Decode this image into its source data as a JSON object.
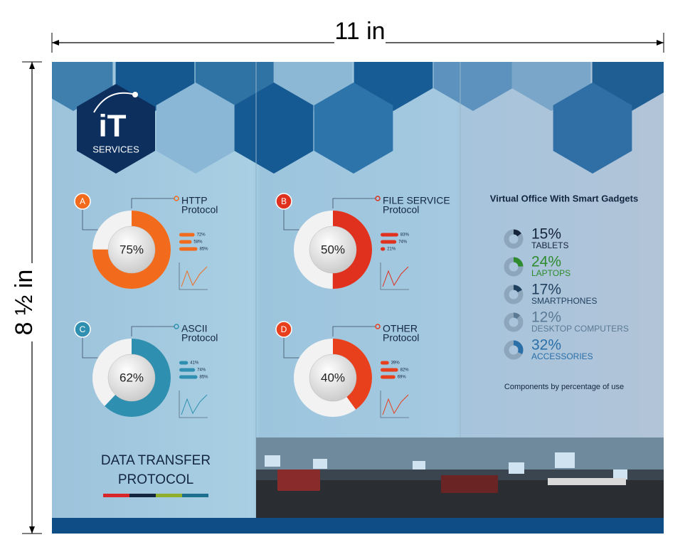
{
  "dimensions": {
    "width": "11 in",
    "height": "8 ½ in"
  },
  "logo": {
    "mark": "iT",
    "text": "SERVICES"
  },
  "panels": [
    {
      "letter": "A",
      "title": [
        "HTTP",
        "Protocol"
      ],
      "color": "#f26a1b",
      "percent": {
        "value": 75,
        "label": "75%"
      },
      "bars": [
        {
          "value": 72,
          "label": "72%"
        },
        {
          "value": 58,
          "label": "58%"
        },
        {
          "value": 85,
          "label": "85%"
        }
      ]
    },
    {
      "letter": "B",
      "title": [
        "FILE SERVICE",
        "Protocol"
      ],
      "color": "#e0301e",
      "percent": {
        "value": 50,
        "label": "50%"
      },
      "bars": [
        {
          "value": 83,
          "label": "83%"
        },
        {
          "value": 74,
          "label": "74%"
        },
        {
          "value": 21,
          "label": "21%"
        }
      ]
    },
    {
      "letter": "C",
      "title": [
        "ASCII",
        "Protocol"
      ],
      "color": "#2e8fb0",
      "percent": {
        "value": 62,
        "label": "62%"
      },
      "bars": [
        {
          "value": 41,
          "label": "41%"
        },
        {
          "value": 74,
          "label": "74%"
        },
        {
          "value": 85,
          "label": "85%"
        }
      ]
    },
    {
      "letter": "D",
      "title": [
        "OTHER",
        "Protocol"
      ],
      "color": "#e8401c",
      "percent": {
        "value": 40,
        "label": "40%"
      },
      "bars": [
        {
          "value": 39,
          "label": "39%"
        },
        {
          "value": 82,
          "label": "82%"
        },
        {
          "value": 69,
          "label": "69%"
        }
      ]
    }
  ],
  "gadgets": {
    "title": "Virtual Office With Smart Gadgets",
    "items": [
      {
        "percent": {
          "value": 15,
          "label": "15%"
        },
        "label": "TABLETS",
        "color": "#15253a"
      },
      {
        "percent": {
          "value": 24,
          "label": "24%"
        },
        "label": "LAPTOPS",
        "color": "#2e8b2e"
      },
      {
        "percent": {
          "value": 17,
          "label": "17%"
        },
        "label": "SMARTPHONES",
        "color": "#1f3f5f"
      },
      {
        "percent": {
          "value": 12,
          "label": "12%"
        },
        "label": "DESKTOP COMPUTERS",
        "color": "#5a7a95"
      },
      {
        "percent": {
          "value": 32,
          "label": "32%"
        },
        "label": "ACCESSORIES",
        "color": "#2a6fa8"
      }
    ],
    "caption": "Components by percentage of use"
  },
  "footer_title": [
    "DATA TRANSFER",
    "PROTOCOL"
  ]
}
